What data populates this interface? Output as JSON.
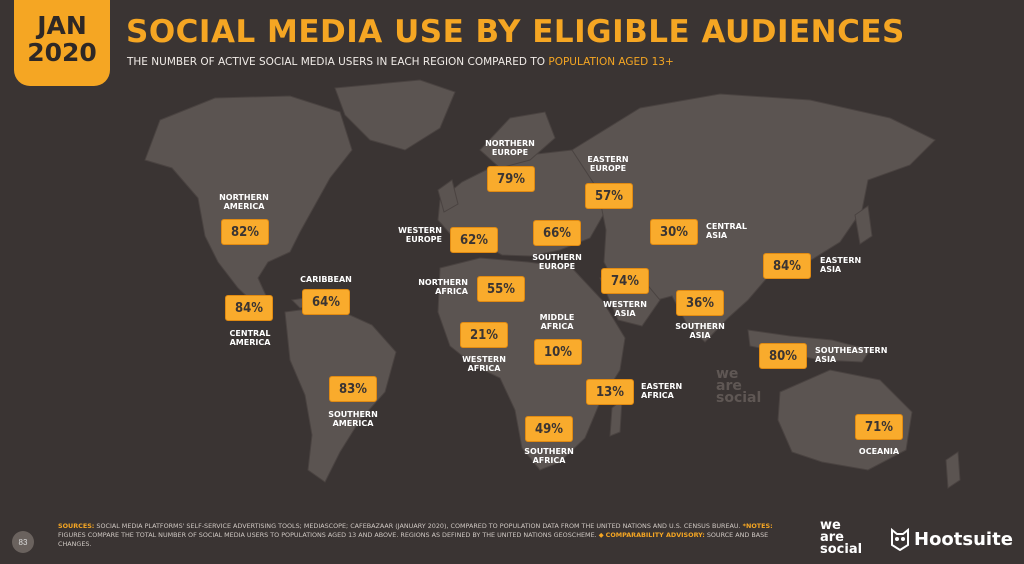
{
  "header": {
    "date_month": "JAN",
    "date_year": "2020",
    "title": "SOCIAL MEDIA USE BY ELIGIBLE AUDIENCES",
    "subtitle_main": "THE NUMBER OF ACTIVE SOCIAL MEDIA USERS IN EACH REGION COMPARED TO ",
    "subtitle_highlight": "POPULATION AGED 13+"
  },
  "regions": {
    "northern_america": {
      "name": "NORTHERN\nAMERICA",
      "value": "82%"
    },
    "central_america": {
      "name": "CENTRAL\nAMERICA",
      "value": "84%"
    },
    "caribbean": {
      "name": "CARIBBEAN",
      "value": "64%"
    },
    "southern_america": {
      "name": "SOUTHERN\nAMERICA",
      "value": "83%"
    },
    "northern_europe": {
      "name": "NORTHERN\nEUROPE",
      "value": "79%"
    },
    "western_europe": {
      "name": "WESTERN\nEUROPE",
      "value": "62%"
    },
    "southern_europe": {
      "name": "SOUTHERN\nEUROPE",
      "value": "66%"
    },
    "eastern_europe": {
      "name": "EASTERN\nEUROPE",
      "value": "57%"
    },
    "northern_africa": {
      "name": "NORTHERN\nAFRICA",
      "value": "55%"
    },
    "western_africa": {
      "name": "WESTERN\nAFRICA",
      "value": "21%"
    },
    "middle_africa": {
      "name": "MIDDLE\nAFRICA",
      "value": "10%"
    },
    "eastern_africa": {
      "name": "EASTERN\nAFRICA",
      "value": "13%"
    },
    "southern_africa": {
      "name": "SOUTHERN\nAFRICA",
      "value": "49%"
    },
    "western_asia": {
      "name": "WESTERN\nASIA",
      "value": "74%"
    },
    "central_asia": {
      "name": "CENTRAL\nASIA",
      "value": "30%"
    },
    "southern_asia": {
      "name": "SOUTHERN\nASIA",
      "value": "36%"
    },
    "eastern_asia": {
      "name": "EASTERN\nASIA",
      "value": "84%"
    },
    "southeastern_asia": {
      "name": "SOUTHEASTERN\nASIA",
      "value": "80%"
    },
    "oceania": {
      "name": "OCEANIA",
      "value": "71%"
    }
  },
  "watermark": "we\nare\nsocial",
  "footer": {
    "page_number": "83",
    "sources_label": "SOURCES:",
    "sources_text": "SOCIAL MEDIA PLATFORMS' SELF-SERVICE ADVERTISING TOOLS; MEDIASCOPE; CAFEBAZAAR (JANUARY 2020), COMPARED TO POPULATION DATA FROM THE UNITED NATIONS AND U.S. CENSUS BUREAU.",
    "notes_label": "*NOTES:",
    "notes_text": "FIGURES COMPARE THE TOTAL NUMBER OF SOCIAL MEDIA USERS TO POPULATIONS AGED 13 AND ABOVE. REGIONS AS DEFINED BY THE UNITED NATIONS GEOSCHEME.",
    "advisory_label": "COMPARABILITY ADVISORY:",
    "advisory_text": "SOURCE AND BASE CHANGES."
  },
  "logos": {
    "we_are_social": "we\nare\nsocial",
    "hootsuite": "Hootsuite"
  },
  "colors": {
    "background": "#3a3433",
    "land": "#5b5451",
    "accent": "#f5a623",
    "box": "#f9ab2c"
  }
}
